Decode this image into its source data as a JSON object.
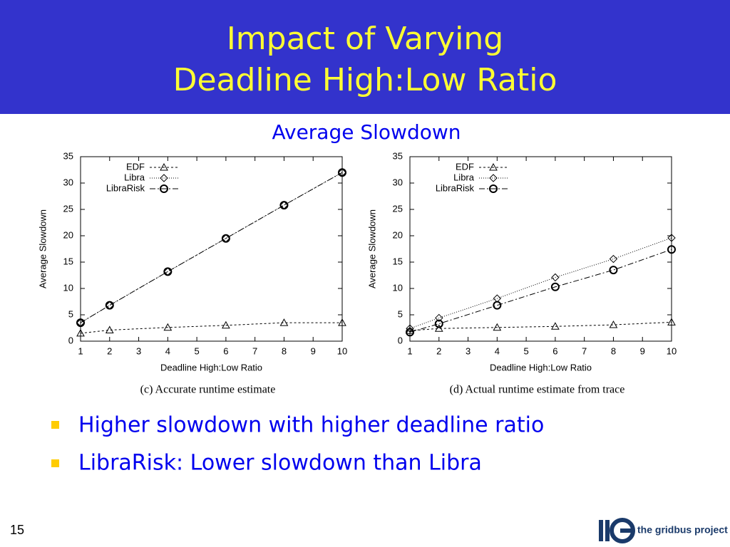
{
  "title_lines": [
    "Impact of Varying",
    "Deadline High:Low Ratio"
  ],
  "subtitle": "Average Slowdown",
  "chart_data": [
    {
      "type": "line",
      "caption": "(c) Accurate runtime estimate",
      "x_label": "Deadline High:Low Ratio",
      "y_label": "Average Slowdown",
      "x": [
        1,
        2,
        4,
        6,
        8,
        10
      ],
      "xlim": [
        1,
        10
      ],
      "xticks": [
        1,
        2,
        3,
        4,
        5,
        6,
        7,
        8,
        9,
        10
      ],
      "ylim": [
        0,
        35
      ],
      "yticks": [
        0,
        5,
        10,
        15,
        20,
        25,
        30,
        35
      ],
      "legend": "top-left",
      "series": [
        {
          "name": "EDF",
          "color": "#000000",
          "marker": "triangle",
          "dash": "3,3",
          "values": [
            1.5,
            2.1,
            2.6,
            3.0,
            3.5,
            3.5
          ]
        },
        {
          "name": "Libra",
          "color": "#000000",
          "marker": "diamond",
          "dash": "1,2",
          "values": [
            3.5,
            6.8,
            13.2,
            19.5,
            25.8,
            32.0
          ]
        },
        {
          "name": "LibraRisk",
          "color": "#000000",
          "marker": "circle",
          "dash": "8,3,2,3",
          "values": [
            3.5,
            6.8,
            13.2,
            19.5,
            25.8,
            32.0
          ]
        }
      ]
    },
    {
      "type": "line",
      "caption": "(d) Actual runtime estimate from trace",
      "x_label": "Deadline High:Low Ratio",
      "y_label": "Average Slowdown",
      "x": [
        1,
        2,
        4,
        6,
        8,
        10
      ],
      "xlim": [
        1,
        10
      ],
      "xticks": [
        1,
        2,
        3,
        4,
        5,
        6,
        7,
        8,
        9,
        10
      ],
      "ylim": [
        0,
        35
      ],
      "yticks": [
        0,
        5,
        10,
        15,
        20,
        25,
        30,
        35
      ],
      "legend": "top-left",
      "series": [
        {
          "name": "EDF",
          "color": "#000000",
          "marker": "triangle",
          "dash": "3,3",
          "values": [
            2.0,
            2.4,
            2.6,
            2.8,
            3.1,
            3.6
          ]
        },
        {
          "name": "Libra",
          "color": "#000000",
          "marker": "diamond",
          "dash": "1,2",
          "values": [
            2.4,
            4.4,
            8.1,
            12.1,
            15.6,
            19.6
          ]
        },
        {
          "name": "LibraRisk",
          "color": "#000000",
          "marker": "circle",
          "dash": "8,3,2,3",
          "values": [
            1.7,
            3.3,
            6.8,
            10.3,
            13.5,
            17.4
          ]
        }
      ]
    }
  ],
  "bullets": [
    "Higher slowdown with higher deadline ratio",
    "LibraRisk: Lower slowdown than Libra"
  ],
  "page_number": "15",
  "logo_text": "the gridbus project"
}
